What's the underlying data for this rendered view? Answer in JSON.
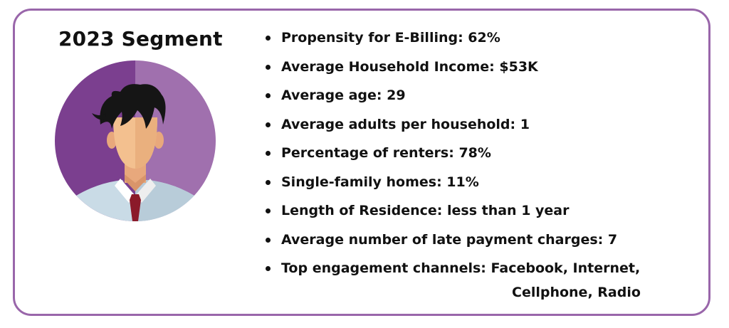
{
  "segment": {
    "title": "2023 Segment",
    "avatar_icon": "person-avatar-icon"
  },
  "colors": {
    "border": "#9966aa",
    "avatar_bg_dark": "#7b3f8f",
    "avatar_bg_light": "#a070ae"
  },
  "stats": [
    {
      "text": "Propensity for E-Billing: 62%"
    },
    {
      "text": "Average Household Income: $53K"
    },
    {
      "text": "Average age: 29"
    },
    {
      "text": "Average adults per household: 1"
    },
    {
      "text": "Percentage of renters: 78%"
    },
    {
      "text": "Single-family homes: 11%"
    },
    {
      "text": "Length of Residence: less than 1 year"
    },
    {
      "text": "Average number of late payment charges: 7"
    },
    {
      "text": "Top engagement channels: Facebook, Internet,",
      "continuation": "Cellphone, Radio"
    }
  ]
}
